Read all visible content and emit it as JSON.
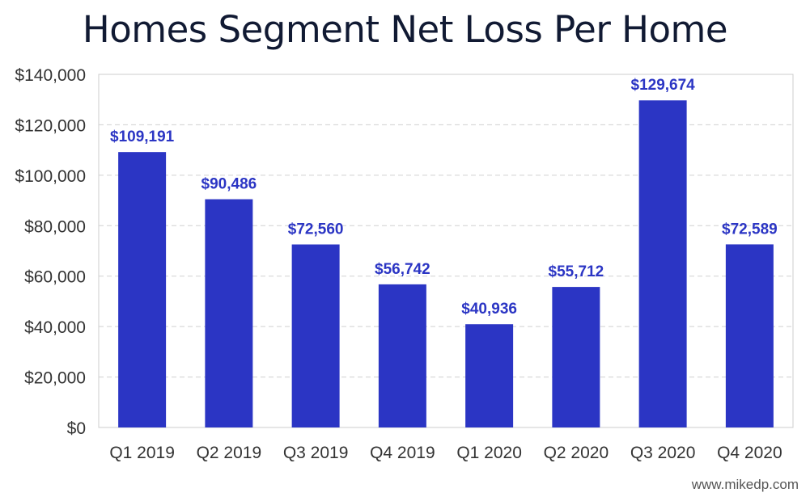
{
  "chart_data": {
    "type": "bar",
    "title": "Homes Segment Net Loss Per Home",
    "xlabel": "",
    "ylabel": "",
    "categories": [
      "Q1 2019",
      "Q2 2019",
      "Q3 2019",
      "Q4 2019",
      "Q1 2020",
      "Q2 2020",
      "Q3 2020",
      "Q4 2020"
    ],
    "values": [
      109191,
      90486,
      72560,
      56742,
      40936,
      55712,
      129674,
      72589
    ],
    "data_labels": [
      "$109,191",
      "$90,486",
      "$72,560",
      "$56,742",
      "$40,936",
      "$55,712",
      "$129,674",
      "$72,589"
    ],
    "ylim": [
      0,
      140000
    ],
    "yticks": [
      0,
      20000,
      40000,
      60000,
      80000,
      100000,
      120000,
      140000
    ],
    "ytick_labels": [
      "$0",
      "$20,000",
      "$40,000",
      "$60,000",
      "$80,000",
      "$100,000",
      "$120,000",
      "$140,000"
    ],
    "grid": true,
    "bar_color": "#2b35c4",
    "label_color": "#2b35c4"
  },
  "watermark": "www.mikedp.com"
}
